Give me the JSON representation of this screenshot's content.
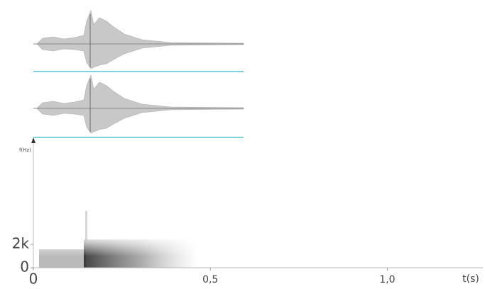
{
  "chart_data": {
    "type": "spectrogram",
    "xlabel": "t(s)",
    "ylabel": "f(Hz)",
    "xlim": [
      0,
      1.27
    ],
    "ylim": [
      0,
      11000
    ],
    "xticks": [
      0,
      {
        "value": 0.5,
        "label": "0,5"
      },
      {
        "value": 1,
        "label": "1,0"
      }
    ],
    "yticks": [
      0,
      {
        "value": 2000,
        "label": "2k"
      }
    ]
  }
}
